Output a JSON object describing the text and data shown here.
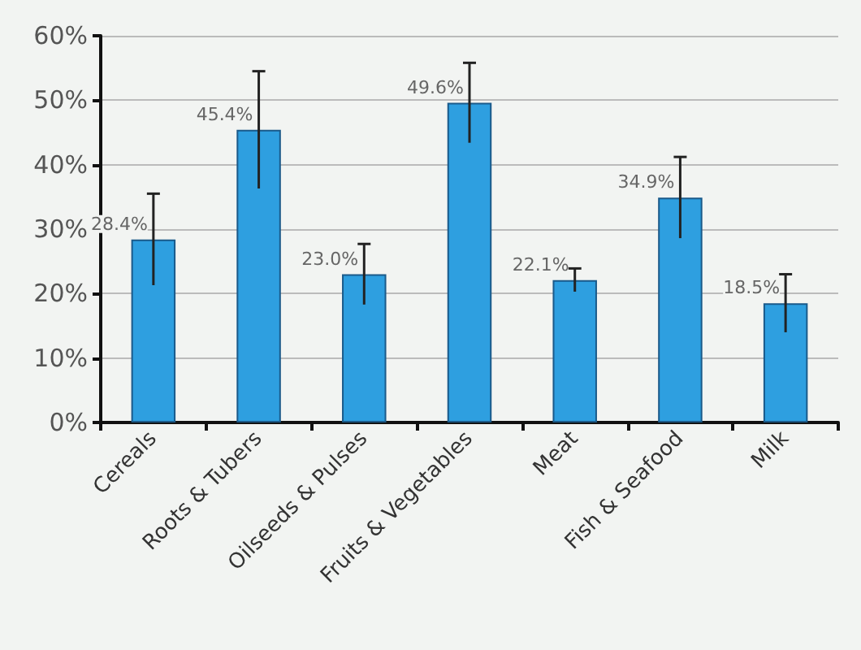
{
  "chart_data": {
    "type": "bar",
    "categories": [
      "Cereals",
      "Roots & Tubers",
      "Oilseeds & Pulses",
      "Fruits & Vegetables",
      "Meat",
      "Fish & Seafood",
      "Milk"
    ],
    "values": [
      28.4,
      45.4,
      23.0,
      49.6,
      22.1,
      34.9,
      18.5
    ],
    "errors": [
      7.1,
      9.1,
      4.7,
      6.2,
      1.8,
      6.3,
      4.5
    ],
    "value_labels": [
      "28.4%",
      "45.4%",
      "23.0%",
      "49.6%",
      "22.1%",
      "34.9%",
      "18.5%"
    ],
    "color": "#2e9fe0",
    "ylim": [
      0,
      60
    ],
    "yticks": [
      {
        "value": 0,
        "label": "0%"
      },
      {
        "value": 10,
        "label": "10%"
      },
      {
        "value": 20,
        "label": "20%"
      },
      {
        "value": 30,
        "label": "30%"
      },
      {
        "value": 40,
        "label": "40%"
      },
      {
        "value": 50,
        "label": "50%"
      },
      {
        "value": 60,
        "label": "60%"
      }
    ],
    "grid": "y"
  }
}
